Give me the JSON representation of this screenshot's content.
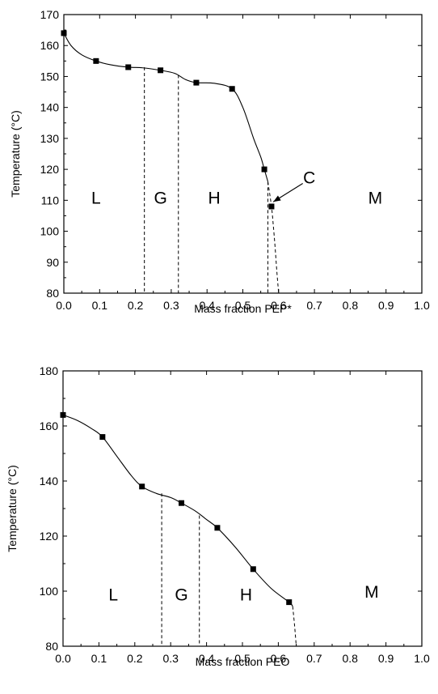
{
  "chart_data": [
    {
      "type": "scatter",
      "xlabel": "Mass fraction PEP*",
      "ylabel": "Temperature (°C)",
      "xlim": [
        0.0,
        1.0
      ],
      "ylim": [
        80,
        170
      ],
      "x_ticks": [
        "0.0",
        "0.1",
        "0.2",
        "0.3",
        "0.4",
        "0.5",
        "0.6",
        "0.7",
        "0.8",
        "0.9",
        "1.0"
      ],
      "y_ticks": [
        "80",
        "90",
        "100",
        "110",
        "120",
        "130",
        "140",
        "150",
        "160",
        "170"
      ],
      "series": [
        {
          "x": [
            0.0,
            0.09,
            0.18,
            0.27,
            0.37,
            0.47,
            0.56,
            0.58
          ],
          "y": [
            164,
            155,
            153,
            152,
            148,
            146,
            120,
            108
          ]
        }
      ],
      "curve": {
        "x": [
          0.0,
          0.02,
          0.05,
          0.09,
          0.13,
          0.18,
          0.22,
          0.27,
          0.31,
          0.34,
          0.37,
          0.42,
          0.47,
          0.5,
          0.53,
          0.55,
          0.56,
          0.57
        ],
        "y": [
          164,
          160,
          157,
          155,
          153.8,
          153,
          152.8,
          152,
          151,
          149,
          148,
          147.8,
          146,
          140,
          130,
          124,
          120,
          116
        ]
      },
      "dashed_curve": {
        "x": [
          0.57,
          0.58,
          0.585,
          0.59,
          0.595,
          0.6
        ],
        "y": [
          116,
          108,
          102,
          95,
          87,
          80
        ]
      },
      "boundaries": [
        {
          "x": 0.225,
          "y_top": 153
        },
        {
          "x": 0.32,
          "y_top": 150.5
        },
        {
          "x": 0.57,
          "y_top": 116
        }
      ],
      "regions": [
        {
          "label": "L",
          "x": 0.09,
          "y": 111
        },
        {
          "label": "G",
          "x": 0.27,
          "y": 111
        },
        {
          "label": "H",
          "x": 0.42,
          "y": 111
        },
        {
          "label": "M",
          "x": 0.87,
          "y": 111
        }
      ],
      "annotation": {
        "label": "C",
        "text_x": 0.69,
        "text_y": 116.5,
        "target_x": 0.585,
        "target_y": 109.5
      }
    },
    {
      "type": "scatter",
      "xlabel": "Mass fraction PEO",
      "ylabel": "Temperature (°C)",
      "xlim": [
        0.0,
        1.0
      ],
      "ylim": [
        80,
        180
      ],
      "x_ticks": [
        "0.0",
        "0.1",
        "0.2",
        "0.3",
        "0.4",
        "0.5",
        "0.6",
        "0.7",
        "0.8",
        "0.9",
        "1.0"
      ],
      "y_ticks": [
        "80",
        "100",
        "120",
        "140",
        "160",
        "180"
      ],
      "series": [
        {
          "x": [
            0.0,
            0.11,
            0.22,
            0.33,
            0.43,
            0.53,
            0.63
          ],
          "y": [
            164,
            156,
            138,
            132,
            123,
            108,
            96
          ]
        }
      ],
      "curve": {
        "x": [
          0.0,
          0.04,
          0.08,
          0.11,
          0.15,
          0.19,
          0.22,
          0.26,
          0.3,
          0.33,
          0.37,
          0.4,
          0.43,
          0.48,
          0.53,
          0.58,
          0.63,
          0.64
        ],
        "y": [
          164,
          162,
          159,
          156,
          149,
          142,
          138,
          135.5,
          134,
          132,
          129,
          126,
          123,
          116,
          108,
          101,
          96,
          94.5
        ]
      },
      "dashed_curve": {
        "x": [
          0.64,
          0.645,
          0.65
        ],
        "y": [
          94.5,
          88,
          80
        ]
      },
      "boundaries": [
        {
          "x": 0.275,
          "y_top": 135.5
        },
        {
          "x": 0.38,
          "y_top": 127.5
        }
      ],
      "regions": [
        {
          "label": "L",
          "x": 0.14,
          "y": 99
        },
        {
          "label": "G",
          "x": 0.33,
          "y": 99
        },
        {
          "label": "H",
          "x": 0.51,
          "y": 99
        },
        {
          "label": "M",
          "x": 0.86,
          "y": 100
        }
      ]
    }
  ]
}
